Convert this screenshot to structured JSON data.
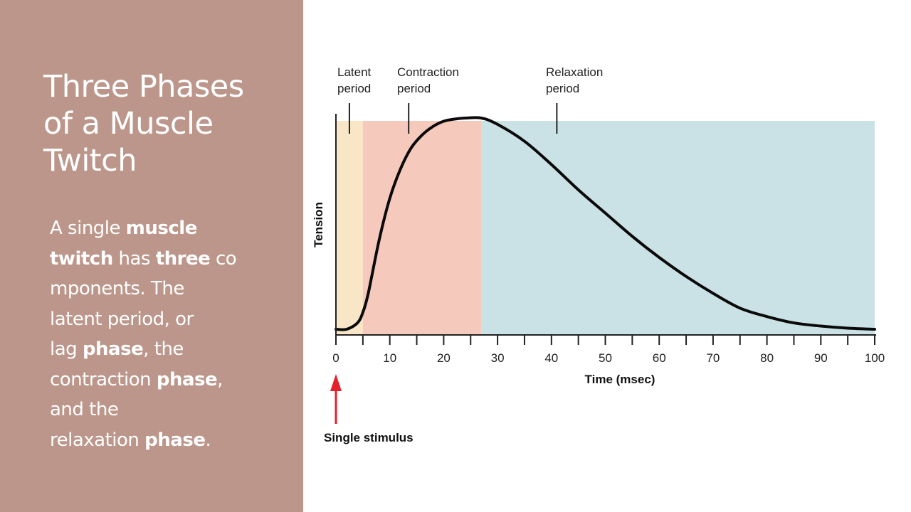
{
  "slide": {
    "title_lines": [
      "Three Phases",
      "of a Muscle",
      "Twitch"
    ],
    "body_lines": [
      [
        {
          "t": "A single ",
          "b": false
        },
        {
          "t": "muscle",
          "b": true
        }
      ],
      [
        {
          "t": "twitch",
          "b": true
        },
        {
          "t": " has ",
          "b": false
        },
        {
          "t": "three",
          "b": true
        },
        {
          "t": " co",
          "b": false
        }
      ],
      [
        {
          "t": "mponents. The",
          "b": false
        }
      ],
      [
        {
          "t": "latent period, or",
          "b": false
        }
      ],
      [
        {
          "t": "lag ",
          "b": false
        },
        {
          "t": "phase",
          "b": true
        },
        {
          "t": ", the",
          "b": false
        }
      ],
      [
        {
          "t": "contraction ",
          "b": false
        },
        {
          "t": "phase",
          "b": true
        },
        {
          "t": ",",
          "b": false
        }
      ],
      [
        {
          "t": "and the",
          "b": false
        }
      ],
      [
        {
          "t": "relaxation ",
          "b": false
        },
        {
          "t": "phase",
          "b": true
        },
        {
          "t": ".",
          "b": false
        }
      ]
    ],
    "panel_color": "#bc968a"
  },
  "chart_data": {
    "type": "line",
    "title": "",
    "xlabel": "Time (msec)",
    "ylabel": "Tension",
    "xlim": [
      0,
      100
    ],
    "x_ticks": [
      0,
      10,
      20,
      30,
      40,
      50,
      60,
      70,
      80,
      90,
      100
    ],
    "x_minor_ticks": [
      5,
      15,
      25,
      35,
      45,
      55,
      65,
      75,
      85,
      95
    ],
    "grid": false,
    "legend": null,
    "series": [
      {
        "name": "Muscle twitch tension (relative)",
        "x": [
          0,
          2,
          4,
          5,
          6,
          8,
          10,
          12,
          14,
          16,
          18,
          20,
          22,
          24,
          27,
          30,
          35,
          40,
          45,
          50,
          55,
          60,
          65,
          70,
          75,
          80,
          85,
          90,
          95,
          100
        ],
        "y": [
          0,
          0.0,
          0.03,
          0.08,
          0.17,
          0.42,
          0.62,
          0.76,
          0.86,
          0.92,
          0.96,
          0.985,
          0.995,
          1.0,
          1.0,
          0.97,
          0.89,
          0.78,
          0.66,
          0.55,
          0.44,
          0.34,
          0.25,
          0.17,
          0.1,
          0.06,
          0.03,
          0.015,
          0.005,
          0.0
        ]
      }
    ],
    "regions": [
      {
        "name": "Latent period",
        "x_start": 0,
        "x_end": 5,
        "color": "#f8e6c6"
      },
      {
        "name": "Contraction period",
        "x_start": 5,
        "x_end": 27,
        "color": "#f5cabc"
      },
      {
        "name": "Relaxation period",
        "x_start": 27,
        "x_end": 100,
        "color": "#cae2e5"
      }
    ],
    "annotations": [
      {
        "text_lines": [
          "Latent",
          "period"
        ],
        "pointer_x": 2.5
      },
      {
        "text_lines": [
          "Contraction",
          "period"
        ],
        "pointer_x": 13.5
      },
      {
        "text_lines": [
          "Relaxation",
          "period"
        ],
        "pointer_x": 41
      },
      {
        "text": "Single stimulus",
        "x": 0,
        "arrow_color": "#e4202a"
      }
    ]
  }
}
